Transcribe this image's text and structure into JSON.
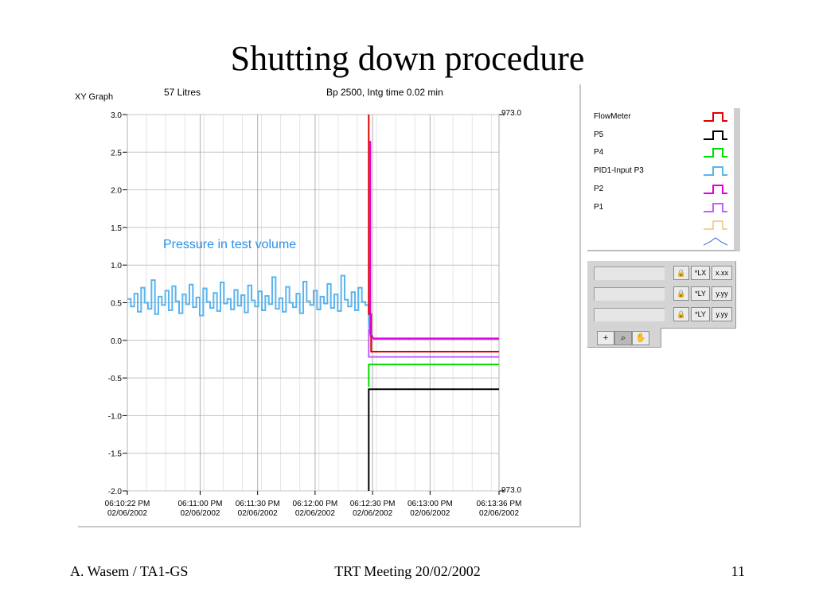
{
  "slide": {
    "title": "Shutting down procedure",
    "footer_left": "A. Wasem / TA1-GS",
    "footer_center": "TRT Meeting 20/02/2002",
    "footer_right": "11"
  },
  "graph": {
    "label": "XY Graph",
    "annotation_top_left": "57 Litres",
    "annotation_top_center": "Bp 2500, Intg time 0.02 min",
    "annotation_inside": "Pressure in test volume",
    "right_axis_top": "973.0",
    "right_axis_bottom": "973.0"
  },
  "chart_data": {
    "type": "line",
    "ylim": [
      -2.0,
      3.0
    ],
    "y_ticks": [
      "3.0",
      "2.5",
      "2.0",
      "1.5",
      "1.0",
      "0.5",
      "0.0",
      "-0.5",
      "-1.0",
      "-1.5",
      "-2.0"
    ],
    "y_tick_values": [
      3.0,
      2.5,
      2.0,
      1.5,
      1.0,
      0.5,
      0.0,
      -0.5,
      -1.0,
      -1.5,
      -2.0
    ],
    "xlim": [
      "06:10:22 PM 02/06/2002",
      "06:13:36 PM 02/06/2002"
    ],
    "x_ticks": [
      {
        "time": "06:10:22 PM",
        "date": "02/06/2002",
        "sec": 0
      },
      {
        "time": "06:11:00 PM",
        "date": "02/06/2002",
        "sec": 38
      },
      {
        "time": "06:11:30 PM",
        "date": "02/06/2002",
        "sec": 68
      },
      {
        "time": "06:12:00 PM",
        "date": "02/06/2002",
        "sec": 98
      },
      {
        "time": "06:12:30 PM",
        "date": "02/06/2002",
        "sec": 128
      },
      {
        "time": "06:13:00 PM",
        "date": "02/06/2002",
        "sec": 158
      },
      {
        "time": "06:13:36 PM",
        "date": "02/06/2002",
        "sec": 194
      }
    ],
    "shutdown_time": "06:12:28 PM",
    "series": [
      {
        "name": "FlowMeter",
        "color": "#e00000",
        "before": null,
        "after": -0.15
      },
      {
        "name": "P5",
        "color": "#000000",
        "before": null,
        "after": -0.65
      },
      {
        "name": "P4",
        "color": "#00dd00",
        "before": null,
        "after": -0.32
      },
      {
        "name": "PID1-Input P3",
        "color": "#5ab4ee",
        "before": 0.5,
        "after": 0.03
      },
      {
        "name": "P2",
        "color": "#e000e0",
        "before": null,
        "after": 0.02
      },
      {
        "name": "P1",
        "color": "#c060ff",
        "before": null,
        "after": -0.22
      }
    ],
    "p3_samples": [
      0.55,
      0.45,
      0.62,
      0.38,
      0.7,
      0.5,
      0.42,
      0.8,
      0.35,
      0.58,
      0.47,
      0.66,
      0.4,
      0.72,
      0.52,
      0.36,
      0.61,
      0.48,
      0.74,
      0.44,
      0.57,
      0.33,
      0.69,
      0.51,
      0.43,
      0.63,
      0.39,
      0.77,
      0.49,
      0.55,
      0.41,
      0.67,
      0.46,
      0.6,
      0.37,
      0.73,
      0.53,
      0.45,
      0.65,
      0.4,
      0.59,
      0.48,
      0.84,
      0.42,
      0.56,
      0.38,
      0.71,
      0.5,
      0.44,
      0.62,
      0.36,
      0.78,
      0.52,
      0.47,
      0.66,
      0.41,
      0.58,
      0.49,
      0.75,
      0.43,
      0.61,
      0.39,
      0.86,
      0.54,
      0.45,
      0.64,
      0.4,
      0.7,
      0.51,
      0.47
    ]
  },
  "legend": {
    "items": [
      "FlowMeter",
      "P5",
      "P4",
      "PID1-Input P3",
      "P2",
      "P1"
    ],
    "extra_colors": [
      "#f0a030",
      "#3060d0"
    ]
  },
  "controls": {
    "scale_rows": [
      {
        "lock": "🔒",
        "axis": "*LX",
        "format": "x.xx"
      },
      {
        "lock": "🔒",
        "axis": "*LY",
        "format": "y.yy"
      },
      {
        "lock": "🔒",
        "axis": "*LY",
        "format": "y.yy"
      }
    ],
    "tools": [
      {
        "name": "cursor-tool",
        "glyph": "+"
      },
      {
        "name": "zoom-tool",
        "glyph": "⌕"
      },
      {
        "name": "pan-tool",
        "glyph": "✋"
      }
    ]
  }
}
